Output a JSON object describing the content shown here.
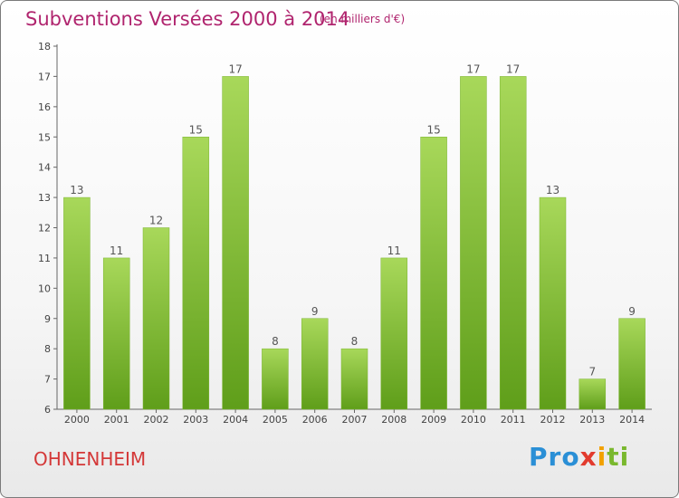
{
  "header": {
    "title": "Subventions Versées 2000 à 2014",
    "subtitle": "(en milliers d'€)"
  },
  "footer": {
    "town": "OHNENHEIM",
    "logo_letters": [
      {
        "char": "P",
        "color": "#2a8fd6"
      },
      {
        "char": "r",
        "color": "#2a8fd6"
      },
      {
        "char": "o",
        "color": "#2a8fd6"
      },
      {
        "char": "x",
        "color": "#e23b2e"
      },
      {
        "char": "i",
        "color": "#f2a100"
      },
      {
        "char": "t",
        "color": "#7ab82e"
      },
      {
        "char": "i",
        "color": "#7ab82e"
      }
    ]
  },
  "colors": {
    "bar_light": "#a8d85a",
    "bar_dark": "#5f9e1a",
    "axis": "#666666",
    "grid": "#cccccc"
  },
  "chart_data": {
    "type": "bar",
    "categories": [
      "2000",
      "2001",
      "2002",
      "2003",
      "2004",
      "2005",
      "2006",
      "2007",
      "2008",
      "2009",
      "2010",
      "2011",
      "2012",
      "2013",
      "2014"
    ],
    "values": [
      13,
      11,
      12,
      15,
      17,
      8,
      9,
      8,
      11,
      15,
      17,
      17,
      13,
      7,
      9
    ],
    "title": "Subventions Versées 2000 à 2014",
    "subtitle": "(en milliers d'€)",
    "ylim": [
      6,
      18
    ],
    "yticks": [
      6,
      7,
      8,
      9,
      10,
      11,
      12,
      13,
      14,
      15,
      16,
      17,
      18
    ],
    "grid": false,
    "data_labels": true
  }
}
